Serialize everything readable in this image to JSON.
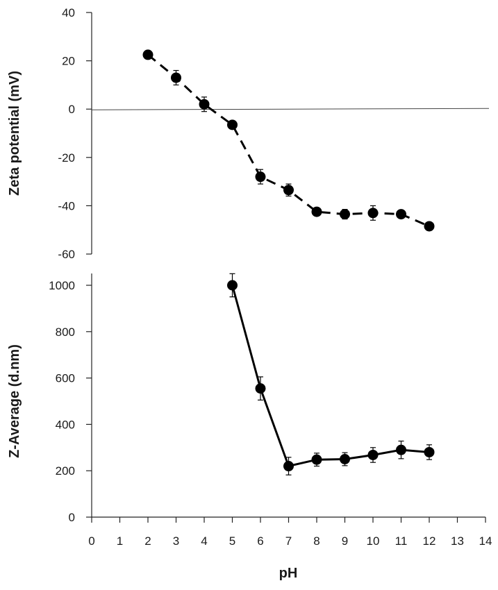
{
  "chart_data": [
    {
      "type": "scatter",
      "xlabel": "",
      "ylabel": "Zeta potential (mV)",
      "ylim": [
        -60,
        40
      ],
      "xlim": [
        0,
        14
      ],
      "yticks": [
        "40",
        "20",
        "0",
        "-20",
        "-40",
        "-60"
      ],
      "reference_line_y": 0,
      "line_style": "dashed",
      "marker_color": "#000000",
      "series": [
        {
          "x": [
            2,
            3,
            4,
            5,
            6,
            7,
            8,
            9,
            10,
            11,
            12
          ],
          "y": [
            22.5,
            13,
            2,
            -6.5,
            -28,
            -33.5,
            -42.5,
            -43.5,
            -43,
            -43.5,
            -48.5
          ],
          "error": [
            1.5,
            3,
            3,
            1.5,
            3,
            2.5,
            1.5,
            2,
            3,
            1.5,
            1.5
          ]
        }
      ]
    },
    {
      "type": "line",
      "xlabel": "pH",
      "ylabel": "Z-Average (d.nm)",
      "ylim": [
        0,
        1000
      ],
      "xlim": [
        0,
        14
      ],
      "yticks": [
        "1000",
        "800",
        "600",
        "400",
        "200",
        "0"
      ],
      "xticks": [
        "0",
        "1",
        "2",
        "3",
        "4",
        "5",
        "6",
        "7",
        "8",
        "9",
        "10",
        "11",
        "12",
        "13",
        "14"
      ],
      "line_style": "solid",
      "marker_color": "#000000",
      "series": [
        {
          "x": [
            5,
            6,
            7,
            8,
            9,
            10,
            11,
            12
          ],
          "y": [
            1000,
            555,
            220,
            248,
            250,
            268,
            290,
            280
          ],
          "error": [
            50,
            50,
            38,
            28,
            28,
            32,
            38,
            32
          ]
        }
      ]
    }
  ]
}
